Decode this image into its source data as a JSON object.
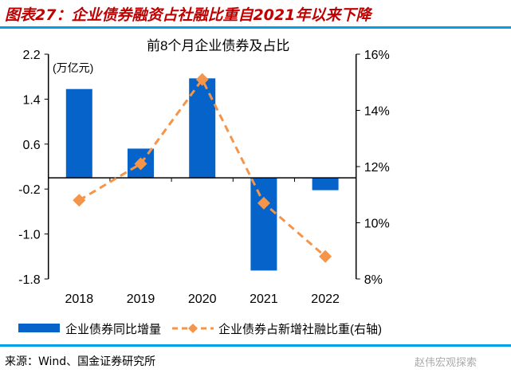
{
  "figure_title": "图表27：企业债券融资占社融比重自2021年以来下降",
  "source": "来源：Wind、国金证券研究所",
  "watermark": "赵伟宏观探索",
  "chart_data": {
    "type": "bar+line",
    "title": "前8个月企业债券及占比",
    "left_unit": "(万亿元)",
    "categories": [
      "2018",
      "2019",
      "2020",
      "2021",
      "2022"
    ],
    "left_axis": {
      "range": [
        -1.8,
        2.2
      ],
      "ticks": [
        "2.2",
        "1.4",
        "0.6",
        "-0.2",
        "-1.0",
        "-1.8"
      ]
    },
    "right_axis": {
      "range": [
        8,
        16
      ],
      "ticks": [
        "16%",
        "14%",
        "12%",
        "10%",
        "8%"
      ]
    },
    "series": [
      {
        "name": "企业债券同比增量",
        "type": "bar",
        "axis": "left",
        "color": "#0563c9",
        "values": [
          1.58,
          0.52,
          1.77,
          -1.65,
          -0.22
        ]
      },
      {
        "name": "企业债券占新增社融比重(右轴)",
        "type": "line",
        "axis": "right",
        "color": "#f4954a",
        "style": "dashed",
        "marker": "diamond",
        "values": [
          10.8,
          12.1,
          15.1,
          10.7,
          8.8
        ]
      }
    ],
    "grid": false,
    "legend_position": "bottom"
  }
}
